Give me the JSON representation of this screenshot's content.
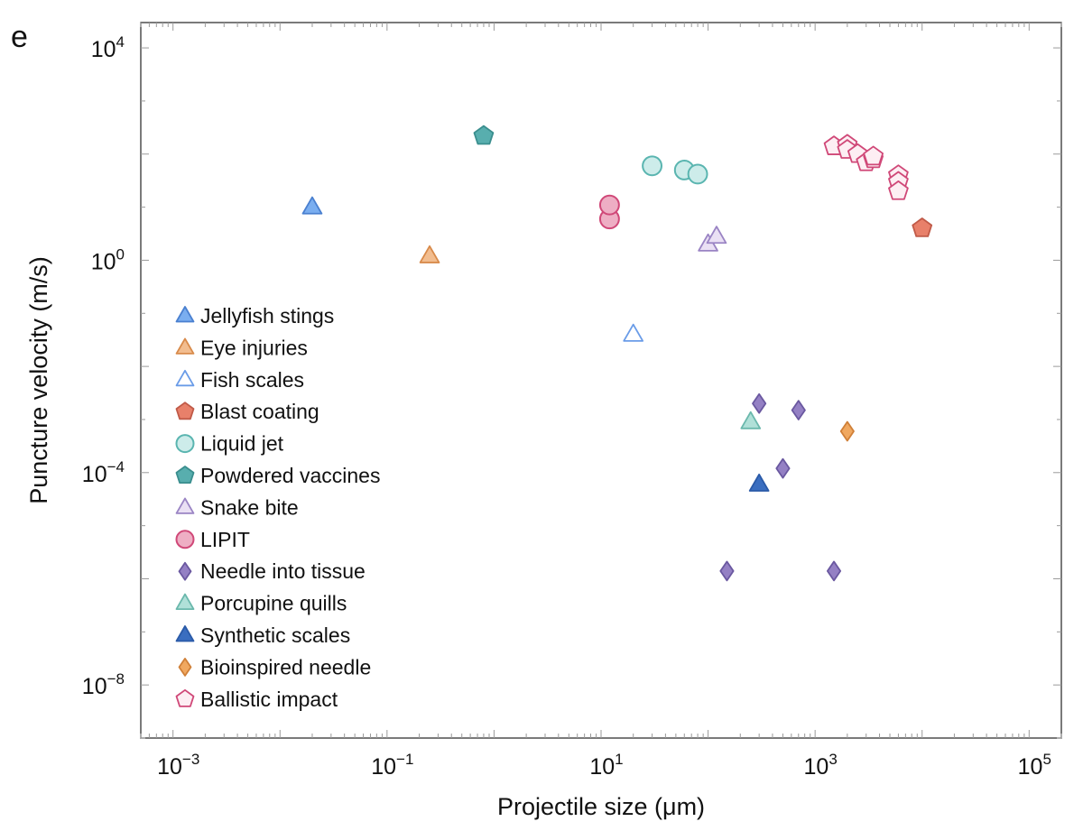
{
  "panel_label": "e",
  "chart_data": {
    "type": "scatter",
    "title": "",
    "xlabel": "Projectile size (μm)",
    "ylabel": "Puncture velocity (m/s)",
    "xscale": "log",
    "yscale": "log",
    "xlim": [
      0.0005,
      200000
    ],
    "ylim": [
      1e-09,
      30000
    ],
    "grid": false,
    "legend_position": "left",
    "x_ticks": [
      {
        "base": "10",
        "exp": "−3",
        "value": 0.001
      },
      {
        "base": "10",
        "exp": "−1",
        "value": 0.1
      },
      {
        "base": "10",
        "exp": "1",
        "value": 10
      },
      {
        "base": "10",
        "exp": "3",
        "value": 1000
      },
      {
        "base": "10",
        "exp": "5",
        "value": 100000
      }
    ],
    "y_ticks": [
      {
        "base": "10",
        "exp": "4",
        "value": 10000
      },
      {
        "base": "10",
        "exp": "0",
        "value": 1
      },
      {
        "base": "10",
        "exp": "−4",
        "value": 0.0001
      },
      {
        "base": "10",
        "exp": "−8",
        "value": 1e-08
      }
    ],
    "series": [
      {
        "name": "Jellyfish stings",
        "marker": "triangle",
        "fill": "#7aaef0",
        "stroke": "#4a80d0",
        "points": [
          {
            "x": 0.02,
            "y": 10
          }
        ]
      },
      {
        "name": "Eye injuries",
        "marker": "triangle",
        "fill": "#f2bd8f",
        "stroke": "#d88a4a",
        "points": [
          {
            "x": 0.25,
            "y": 1.2
          }
        ]
      },
      {
        "name": "Fish scales",
        "marker": "triangle",
        "fill": "#ffffff",
        "stroke": "#6a9ce8",
        "points": [
          {
            "x": 20,
            "y": 0.04
          }
        ]
      },
      {
        "name": "Blast coating",
        "marker": "pentagon",
        "fill": "#e8806a",
        "stroke": "#c05a48",
        "points": [
          {
            "x": 10000,
            "y": 4
          }
        ]
      },
      {
        "name": "Liquid jet",
        "marker": "circle",
        "fill": "#cdecea",
        "stroke": "#5ab5b0",
        "points": [
          {
            "x": 30,
            "y": 60
          },
          {
            "x": 60,
            "y": 50
          },
          {
            "x": 80,
            "y": 42
          }
        ]
      },
      {
        "name": "Powdered vaccines",
        "marker": "pentagon",
        "fill": "#58aeae",
        "stroke": "#3a8e8e",
        "points": [
          {
            "x": 0.8,
            "y": 220
          }
        ]
      },
      {
        "name": "Snake bite",
        "marker": "triangle",
        "fill": "#eae0f4",
        "stroke": "#9a84c4",
        "points": [
          {
            "x": 100,
            "y": 2
          },
          {
            "x": 120,
            "y": 2.8
          }
        ]
      },
      {
        "name": "LIPIT",
        "marker": "circle",
        "fill": "#eeaec4",
        "stroke": "#d04878",
        "points": [
          {
            "x": 12,
            "y": 6
          },
          {
            "x": 12,
            "y": 11
          }
        ]
      },
      {
        "name": "Needle into tissue",
        "marker": "diamond",
        "fill": "#9480c4",
        "stroke": "#6a58a0",
        "points": [
          {
            "x": 300,
            "y": 0.002
          },
          {
            "x": 700,
            "y": 0.0015
          },
          {
            "x": 500,
            "y": 0.00012
          },
          {
            "x": 150,
            "y": 1.4e-06
          },
          {
            "x": 1500,
            "y": 1.4e-06
          }
        ]
      },
      {
        "name": "Porcupine quills",
        "marker": "triangle",
        "fill": "#b0e0d8",
        "stroke": "#6ab8ac",
        "points": [
          {
            "x": 250,
            "y": 0.0009
          }
        ]
      },
      {
        "name": "Synthetic scales",
        "marker": "triangle",
        "fill": "#3a6ec0",
        "stroke": "#2a5aa8",
        "points": [
          {
            "x": 300,
            "y": 6e-05
          }
        ]
      },
      {
        "name": "Bioinspired needle",
        "marker": "diamond",
        "fill": "#f0a860",
        "stroke": "#d08038",
        "points": [
          {
            "x": 2000,
            "y": 0.0006
          }
        ]
      },
      {
        "name": "Ballistic impact",
        "marker": "pentagon",
        "fill": "#fdeef3",
        "stroke": "#d04878",
        "points": [
          {
            "x": 1500,
            "y": 140
          },
          {
            "x": 2000,
            "y": 150
          },
          {
            "x": 2000,
            "y": 120
          },
          {
            "x": 2500,
            "y": 100
          },
          {
            "x": 3000,
            "y": 70
          },
          {
            "x": 3500,
            "y": 80
          },
          {
            "x": 3500,
            "y": 90
          },
          {
            "x": 6000,
            "y": 40
          },
          {
            "x": 6000,
            "y": 30
          },
          {
            "x": 6000,
            "y": 20
          }
        ]
      }
    ]
  }
}
